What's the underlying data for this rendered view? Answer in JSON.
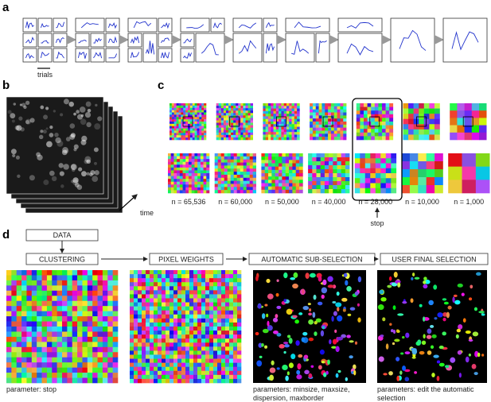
{
  "panels": {
    "a": {
      "label": "a",
      "axis_label": "trials"
    },
    "b": {
      "label": "b",
      "axis_label": "time"
    },
    "c": {
      "label": "c",
      "counts": [
        "n = 65,536",
        "n = 60,000",
        "n = 50,000",
        "n = 40,000",
        "n = 28,000",
        "n = 10,000",
        "n = 1,000"
      ],
      "marker": "stop"
    },
    "d": {
      "label": "d",
      "input": "DATA",
      "steps": [
        {
          "title": "CLUSTERING",
          "caption": [
            "parameter: stop"
          ]
        },
        {
          "title": "PIXEL WEIGHTS",
          "caption": []
        },
        {
          "title": "AUTOMATIC SUB-SELECTION",
          "caption": [
            "parameters: minsize, maxsize,",
            "dispersion, maxborder"
          ]
        },
        {
          "title": "USER FINAL SELECTION",
          "caption": [
            "parameters: edit the automatic",
            "selection"
          ]
        }
      ]
    }
  }
}
